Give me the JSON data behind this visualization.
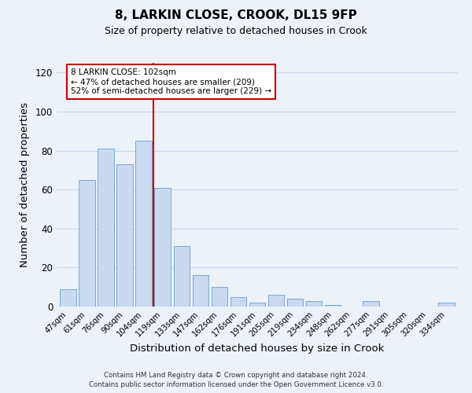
{
  "title": "8, LARKIN CLOSE, CROOK, DL15 9FP",
  "subtitle": "Size of property relative to detached houses in Crook",
  "xlabel": "Distribution of detached houses by size in Crook",
  "ylabel": "Number of detached properties",
  "categories": [
    "47sqm",
    "61sqm",
    "76sqm",
    "90sqm",
    "104sqm",
    "119sqm",
    "133sqm",
    "147sqm",
    "162sqm",
    "176sqm",
    "191sqm",
    "205sqm",
    "219sqm",
    "234sqm",
    "248sqm",
    "262sqm",
    "277sqm",
    "291sqm",
    "305sqm",
    "320sqm",
    "334sqm"
  ],
  "values": [
    9,
    65,
    81,
    73,
    85,
    61,
    31,
    16,
    10,
    5,
    2,
    6,
    4,
    3,
    1,
    0,
    3,
    0,
    0,
    0,
    2
  ],
  "bar_color": "#c9d9f0",
  "bar_edge_color": "#7aaad0",
  "vline_index": 4,
  "vline_color": "#cc0000",
  "annotation_text": "8 LARKIN CLOSE: 102sqm\n← 47% of detached houses are smaller (209)\n52% of semi-detached houses are larger (229) →",
  "annotation_box_color": "#ffffff",
  "annotation_box_edge_color": "#cc0000",
  "ylim": [
    0,
    125
  ],
  "yticks": [
    0,
    20,
    40,
    60,
    80,
    100,
    120
  ],
  "grid_color": "#c8d8ec",
  "background_color": "#edf2f9",
  "footer_line1": "Contains HM Land Registry data © Crown copyright and database right 2024.",
  "footer_line2": "Contains public sector information licensed under the Open Government Licence v3.0."
}
